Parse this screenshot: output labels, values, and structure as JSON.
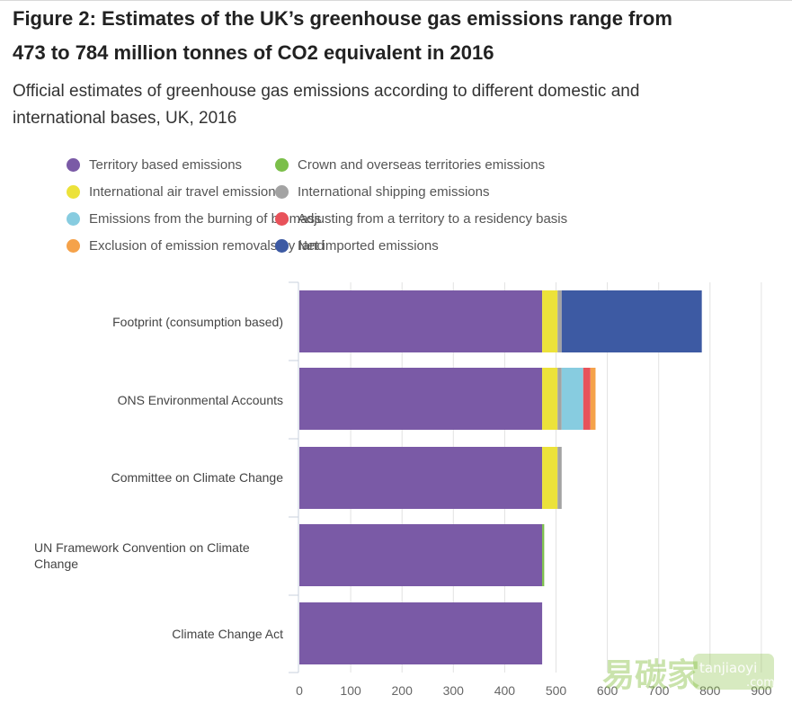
{
  "header": {
    "title": "Figure 2: Estimates of the UK’s greenhouse gas emissions range from 473 to 784 million tonnes of CO2 equivalent in 2016",
    "subtitle": "Official estimates of greenhouse gas emissions according to different domestic and international bases, UK, 2016"
  },
  "colors": {
    "territory": "#7a5aa6",
    "crown": "#7bbf4a",
    "air": "#ece23a",
    "shipping": "#a3a3a3",
    "biomass": "#87cce0",
    "residency": "#e8525a",
    "removals": "#f5a24a",
    "imported": "#3d5aa3"
  },
  "watermark": {
    "brand": "易碳家",
    "site": "tanjiaoyi",
    "domain": ".com"
  },
  "chart_data": {
    "type": "bar",
    "orientation": "horizontal",
    "stacked": true,
    "title": "Figure 2: Estimates of the UK’s greenhouse gas emissions range from 473 to 784 million tonnes of CO2 equivalent in 2016",
    "subtitle": "Official estimates of greenhouse gas emissions according to different domestic and international bases, UK, 2016",
    "xlabel": "",
    "ylabel": "",
    "xlim": [
      0,
      900
    ],
    "xticks": [
      "0",
      "100",
      "200",
      "300",
      "400",
      "500",
      "600",
      "700",
      "800",
      "900"
    ],
    "grid": true,
    "legend_position": "top",
    "categories": [
      "Footprint (consumption based)",
      "ONS Environmental Accounts",
      "Committee on Climate Change",
      "UN Framework Convention on Climate Change",
      "Climate Change Act"
    ],
    "series": [
      {
        "name": "Territory based emissions",
        "key": "territory",
        "values": [
          473,
          473,
          473,
          473,
          473
        ]
      },
      {
        "name": "Crown and overseas territories emissions",
        "key": "crown",
        "values": [
          0,
          0,
          0,
          4,
          0
        ]
      },
      {
        "name": "International air travel emissions",
        "key": "air",
        "values": [
          30,
          30,
          30,
          0,
          0
        ]
      },
      {
        "name": "International shipping emissions",
        "key": "shipping",
        "values": [
          8,
          8,
          8,
          0,
          0
        ]
      },
      {
        "name": "Emissions from the burning of biomass",
        "key": "biomass",
        "values": [
          0,
          42,
          0,
          0,
          0
        ]
      },
      {
        "name": "Adjusting from a territory to a residency basis",
        "key": "residency",
        "values": [
          0,
          14,
          0,
          0,
          0
        ]
      },
      {
        "name": "Exclusion of emission removals by land",
        "key": "removals",
        "values": [
          0,
          10,
          0,
          0,
          0
        ]
      },
      {
        "name": "Net imported emissions",
        "key": "imported",
        "values": [
          273,
          0,
          0,
          0,
          0
        ]
      }
    ]
  }
}
